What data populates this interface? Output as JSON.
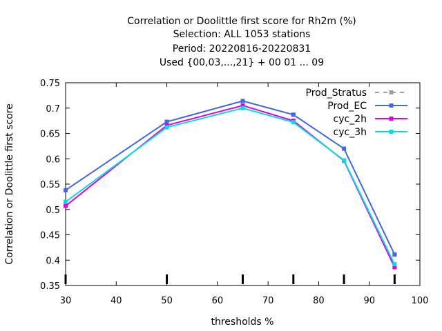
{
  "chart_data": {
    "type": "line",
    "title_lines": [
      "Correlation or Doolittle first score  for Rh2m (%)",
      "Selection: ALL    1053 stations",
      "Period: 20220816-20220831",
      "Used {00,03,...,21} + 00 01 ... 09"
    ],
    "xlabel": "thresholds %",
    "ylabel": "Correlation or Doolittle first score",
    "xlim": [
      30,
      100
    ],
    "ylim": [
      0.35,
      0.75
    ],
    "xticks": [
      30,
      40,
      50,
      60,
      70,
      80,
      90,
      100
    ],
    "yticks": [
      0.35,
      0.4,
      0.45,
      0.5,
      0.55,
      0.6,
      0.65,
      0.7,
      0.75
    ],
    "ytick_labels": [
      "0.35",
      "0.4",
      "0.45",
      "0.5",
      "0.55",
      "0.6",
      "0.65",
      "0.7",
      "0.75"
    ],
    "x": [
      30,
      50,
      65,
      75,
      85,
      95
    ],
    "grid": false,
    "legend_position": "top-right",
    "series": [
      {
        "name": "Prod_Stratus",
        "values": [
          0.538,
          0.673,
          0.714,
          0.687,
          0.62,
          0.411
        ],
        "color": "#a0a0a0",
        "dash": "6,6"
      },
      {
        "name": "Prod_EC",
        "values": [
          0.538,
          0.673,
          0.714,
          0.687,
          0.62,
          0.411
        ],
        "color": "#4169e1",
        "dash": ""
      },
      {
        "name": "cyc_2h",
        "values": [
          0.507,
          0.666,
          0.705,
          0.675,
          0.596,
          0.386
        ],
        "color": "#e000e0",
        "dash": ""
      },
      {
        "name": "cyc_3h",
        "values": [
          0.515,
          0.662,
          0.7,
          0.672,
          0.597,
          0.392
        ],
        "color": "#00e0e0",
        "dash": ""
      }
    ]
  }
}
